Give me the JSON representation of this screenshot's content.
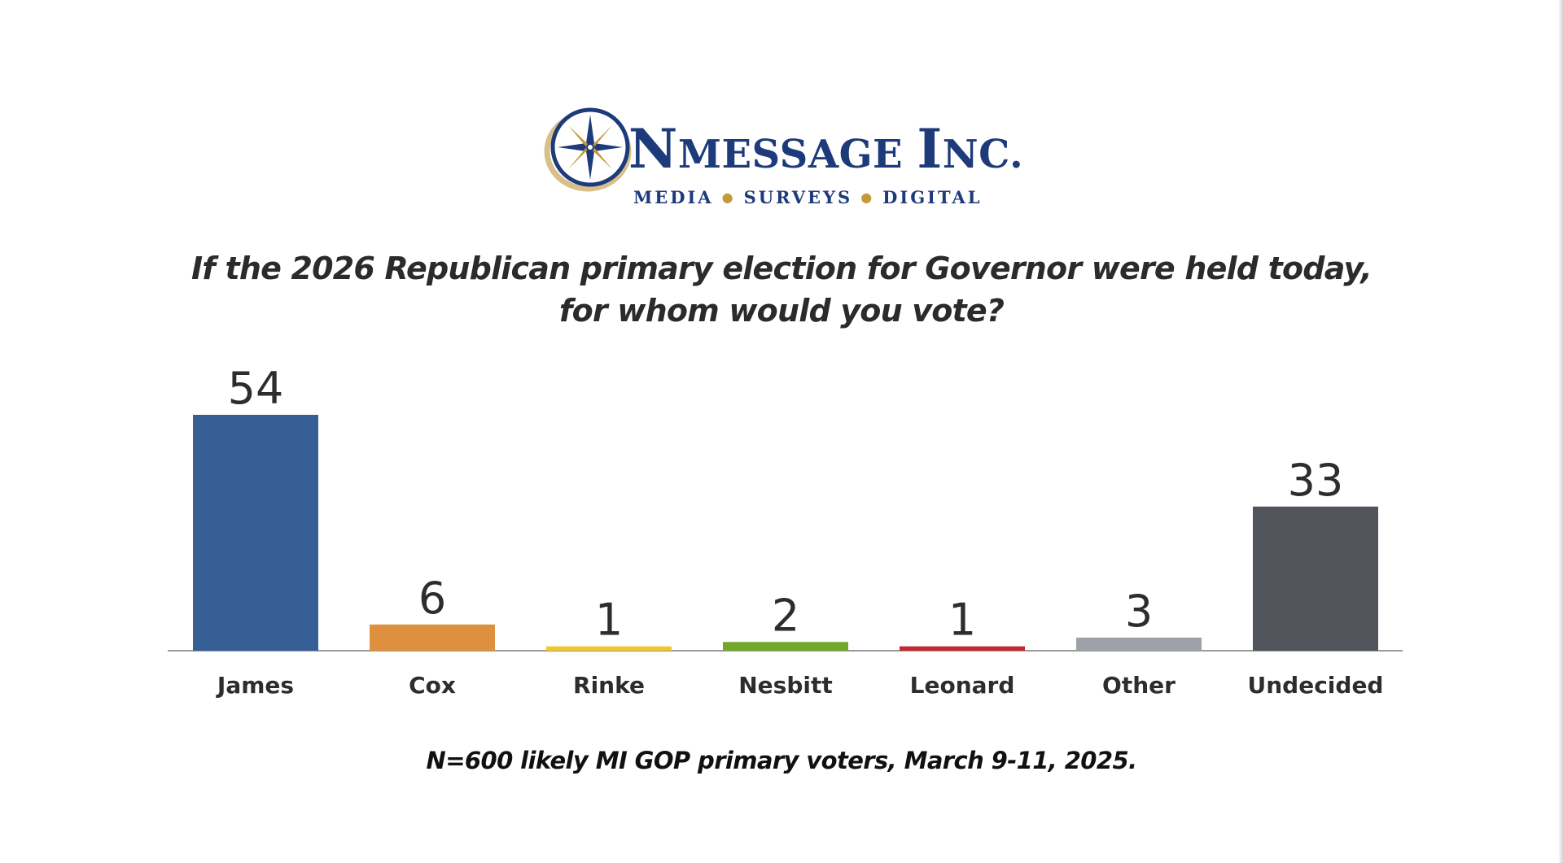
{
  "logo": {
    "name": "OnMessage Inc.",
    "tagline": [
      "Media",
      "Surveys",
      "Digital"
    ],
    "colors": {
      "navy": "#1d3a7a",
      "gold": "#c49a36"
    }
  },
  "chart_data": {
    "type": "bar",
    "title": [
      "If the 2026 Republican primary election for Governor were held today,",
      "for whom would you vote?"
    ],
    "categories": [
      "James",
      "Cox",
      "Rinke",
      "Nesbitt",
      "Leonard",
      "Other",
      "Undecided"
    ],
    "values": [
      54,
      6,
      1,
      2,
      1,
      3,
      33
    ],
    "colors": [
      "#365f96",
      "#de903e",
      "#f0c72e",
      "#73a72b",
      "#bf2b2e",
      "#9ea2a8",
      "#51545b"
    ],
    "ylim": [
      0,
      54
    ],
    "grid": false,
    "legend": "none"
  },
  "footnote": "N=600 likely MI GOP primary voters, March 9-11, 2025."
}
